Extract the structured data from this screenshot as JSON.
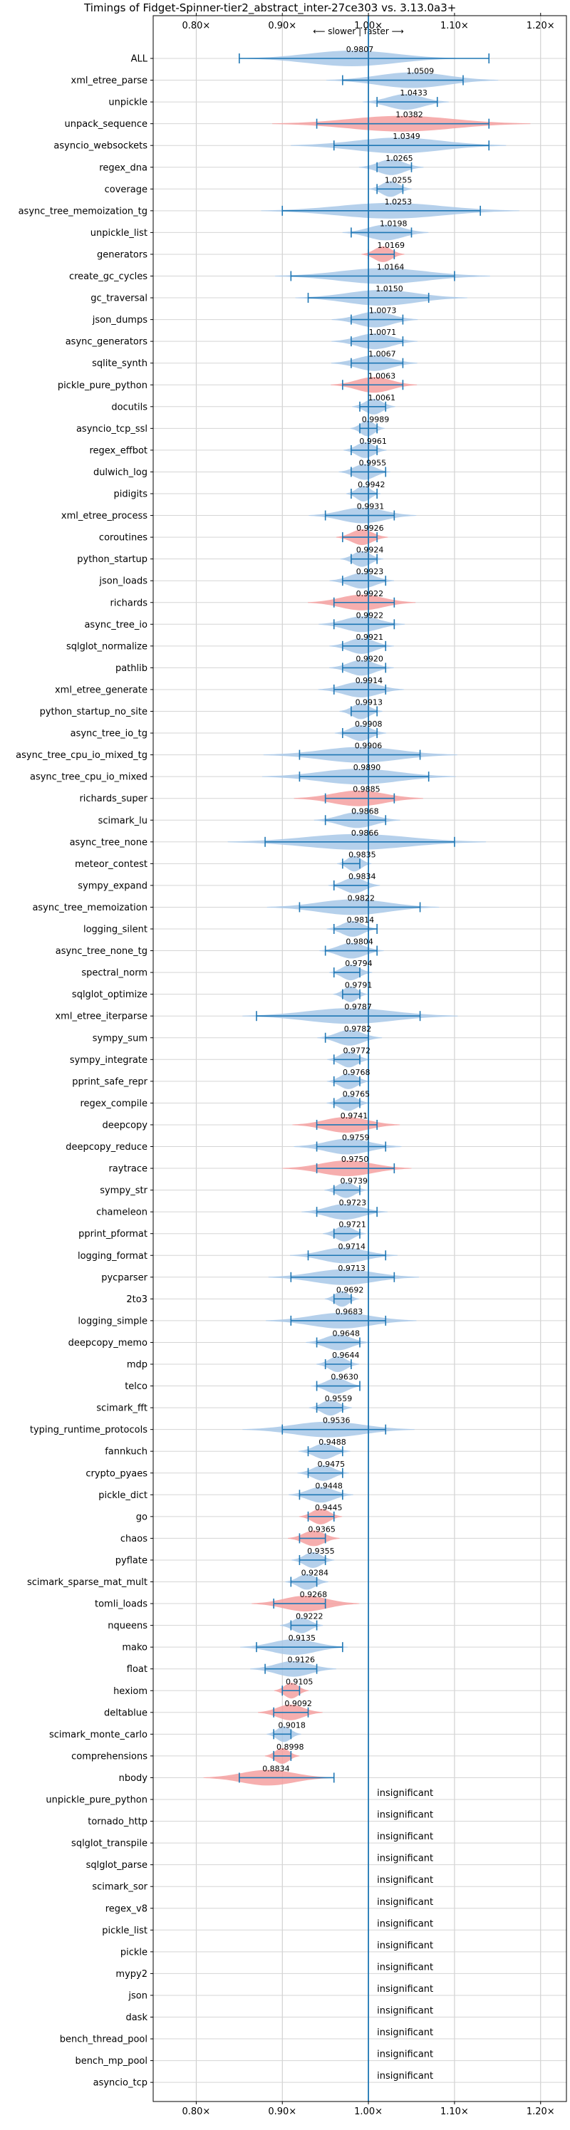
{
  "chart_data": {
    "type": "violin",
    "title": "Timings of Fidget-Spinner-tier2_abstract_inter-27ce303 vs. 3.13.0a3+",
    "direction_label": "⟵ slower | faster ⟶",
    "xlim": [
      0.75,
      1.23
    ],
    "x_ticks": [
      0.8,
      0.9,
      1.0,
      1.1,
      1.2
    ],
    "x_tick_labels": [
      "0.80×",
      "0.90×",
      "1.00×",
      "1.10×",
      "1.20×"
    ],
    "grid": true,
    "colors": {
      "normal": "#a8c8e8",
      "slower": "#f4a0a0",
      "whisker": "#1f77b4"
    },
    "benchmarks": [
      {
        "name": "ALL",
        "value": 0.9807,
        "label": "0.9807",
        "min": 0.85,
        "max": 1.14,
        "spread": 0.05,
        "slower": false
      },
      {
        "name": "xml_etree_parse",
        "value": 1.0509,
        "label": "1.0509",
        "min": 0.97,
        "max": 1.11,
        "spread": 0.04,
        "slower": false
      },
      {
        "name": "unpickle",
        "value": 1.0433,
        "label": "1.0433",
        "min": 1.01,
        "max": 1.08,
        "spread": 0.02,
        "slower": false
      },
      {
        "name": "unpack_sequence",
        "value": 1.0382,
        "label": "1.0382",
        "min": 0.94,
        "max": 1.14,
        "spread": 0.06,
        "slower": true
      },
      {
        "name": "asyncio_websockets",
        "value": 1.0349,
        "label": "1.0349",
        "min": 0.96,
        "max": 1.14,
        "spread": 0.05,
        "slower": false
      },
      {
        "name": "regex_dna",
        "value": 1.0265,
        "label": "1.0265",
        "min": 1.01,
        "max": 1.05,
        "spread": 0.015,
        "slower": false
      },
      {
        "name": "coverage",
        "value": 1.0255,
        "label": "1.0255",
        "min": 1.01,
        "max": 1.04,
        "spread": 0.01,
        "slower": false
      },
      {
        "name": "async_tree_memoization_tg",
        "value": 1.0253,
        "label": "1.0253",
        "min": 0.9,
        "max": 1.13,
        "spread": 0.06,
        "slower": false
      },
      {
        "name": "unpickle_list",
        "value": 1.0198,
        "label": "1.0198",
        "min": 0.98,
        "max": 1.05,
        "spread": 0.02,
        "slower": false
      },
      {
        "name": "generators",
        "value": 1.0169,
        "label": "1.0169",
        "min": 1.0,
        "max": 1.03,
        "spread": 0.01,
        "slower": true
      },
      {
        "name": "create_gc_cycles",
        "value": 1.0164,
        "label": "1.0164",
        "min": 0.91,
        "max": 1.1,
        "spread": 0.05,
        "slower": false
      },
      {
        "name": "gc_traversal",
        "value": 1.015,
        "label": "1.0150",
        "min": 0.93,
        "max": 1.07,
        "spread": 0.04,
        "slower": false
      },
      {
        "name": "json_dumps",
        "value": 1.0073,
        "label": "1.0073",
        "min": 0.98,
        "max": 1.04,
        "spread": 0.02,
        "slower": false
      },
      {
        "name": "async_generators",
        "value": 1.0071,
        "label": "1.0071",
        "min": 0.98,
        "max": 1.04,
        "spread": 0.02,
        "slower": false
      },
      {
        "name": "sqlite_synth",
        "value": 1.0067,
        "label": "1.0067",
        "min": 0.98,
        "max": 1.04,
        "spread": 0.02,
        "slower": false
      },
      {
        "name": "pickle_pure_python",
        "value": 1.0063,
        "label": "1.0063",
        "min": 0.97,
        "max": 1.04,
        "spread": 0.02,
        "slower": true
      },
      {
        "name": "docutils",
        "value": 1.0061,
        "label": "1.0061",
        "min": 0.99,
        "max": 1.02,
        "spread": 0.01,
        "slower": false
      },
      {
        "name": "asyncio_tcp_ssl",
        "value": 0.9989,
        "label": "0.9989",
        "min": 0.99,
        "max": 1.01,
        "spread": 0.008,
        "slower": false
      },
      {
        "name": "regex_effbot",
        "value": 0.9961,
        "label": "0.9961",
        "min": 0.98,
        "max": 1.01,
        "spread": 0.01,
        "slower": false
      },
      {
        "name": "dulwich_log",
        "value": 0.9955,
        "label": "0.9955",
        "min": 0.98,
        "max": 1.02,
        "spread": 0.012,
        "slower": false
      },
      {
        "name": "pidigits",
        "value": 0.9942,
        "label": "0.9942",
        "min": 0.98,
        "max": 1.01,
        "spread": 0.008,
        "slower": false
      },
      {
        "name": "xml_etree_process",
        "value": 0.9931,
        "label": "0.9931",
        "min": 0.95,
        "max": 1.03,
        "spread": 0.025,
        "slower": false
      },
      {
        "name": "coroutines",
        "value": 0.9926,
        "label": "0.9926",
        "min": 0.97,
        "max": 1.01,
        "spread": 0.012,
        "slower": true
      },
      {
        "name": "python_startup",
        "value": 0.9924,
        "label": "0.9924",
        "min": 0.98,
        "max": 1.01,
        "spread": 0.01,
        "slower": false
      },
      {
        "name": "json_loads",
        "value": 0.9923,
        "label": "0.9923",
        "min": 0.97,
        "max": 1.02,
        "spread": 0.015,
        "slower": false
      },
      {
        "name": "richards",
        "value": 0.9922,
        "label": "0.9922",
        "min": 0.96,
        "max": 1.03,
        "spread": 0.025,
        "slower": true
      },
      {
        "name": "async_tree_io",
        "value": 0.9922,
        "label": "0.9922",
        "min": 0.96,
        "max": 1.03,
        "spread": 0.02,
        "slower": false
      },
      {
        "name": "sqlglot_normalize",
        "value": 0.9921,
        "label": "0.9921",
        "min": 0.97,
        "max": 1.02,
        "spread": 0.015,
        "slower": false
      },
      {
        "name": "pathlib",
        "value": 0.992,
        "label": "0.9920",
        "min": 0.97,
        "max": 1.02,
        "spread": 0.015,
        "slower": false
      },
      {
        "name": "xml_etree_generate",
        "value": 0.9914,
        "label": "0.9914",
        "min": 0.96,
        "max": 1.02,
        "spread": 0.02,
        "slower": false
      },
      {
        "name": "python_startup_no_site",
        "value": 0.9913,
        "label": "0.9913",
        "min": 0.98,
        "max": 1.01,
        "spread": 0.01,
        "slower": false
      },
      {
        "name": "async_tree_io_tg",
        "value": 0.9908,
        "label": "0.9908",
        "min": 0.97,
        "max": 1.01,
        "spread": 0.012,
        "slower": false
      },
      {
        "name": "async_tree_cpu_io_mixed_tg",
        "value": 0.9906,
        "label": "0.9906",
        "min": 0.92,
        "max": 1.06,
        "spread": 0.045,
        "slower": false
      },
      {
        "name": "async_tree_cpu_io_mixed",
        "value": 0.989,
        "label": "0.9890",
        "min": 0.92,
        "max": 1.07,
        "spread": 0.045,
        "slower": false
      },
      {
        "name": "richards_super",
        "value": 0.9885,
        "label": "0.9885",
        "min": 0.95,
        "max": 1.03,
        "spread": 0.03,
        "slower": true
      },
      {
        "name": "scimark_lu",
        "value": 0.9868,
        "label": "0.9868",
        "min": 0.95,
        "max": 1.02,
        "spread": 0.02,
        "slower": false
      },
      {
        "name": "async_tree_none",
        "value": 0.9866,
        "label": "0.9866",
        "min": 0.88,
        "max": 1.1,
        "spread": 0.06,
        "slower": false
      },
      {
        "name": "meteor_contest",
        "value": 0.9835,
        "label": "0.9835",
        "min": 0.97,
        "max": 0.99,
        "spread": 0.008,
        "slower": false
      },
      {
        "name": "sympy_expand",
        "value": 0.9834,
        "label": "0.9834",
        "min": 0.96,
        "max": 1.0,
        "spread": 0.012,
        "slower": false
      },
      {
        "name": "async_tree_memoization",
        "value": 0.9822,
        "label": "0.9822",
        "min": 0.92,
        "max": 1.06,
        "spread": 0.04,
        "slower": false
      },
      {
        "name": "logging_silent",
        "value": 0.9814,
        "label": "0.9814",
        "min": 0.96,
        "max": 1.01,
        "spread": 0.012,
        "slower": false
      },
      {
        "name": "async_tree_none_tg",
        "value": 0.9804,
        "label": "0.9804",
        "min": 0.95,
        "max": 1.01,
        "spread": 0.015,
        "slower": false
      },
      {
        "name": "spectral_norm",
        "value": 0.9794,
        "label": "0.9794",
        "min": 0.96,
        "max": 0.99,
        "spread": 0.01,
        "slower": false
      },
      {
        "name": "sqlglot_optimize",
        "value": 0.9791,
        "label": "0.9791",
        "min": 0.97,
        "max": 0.99,
        "spread": 0.008,
        "slower": false
      },
      {
        "name": "xml_etree_iterparse",
        "value": 0.9787,
        "label": "0.9787",
        "min": 0.87,
        "max": 1.06,
        "spread": 0.05,
        "slower": false
      },
      {
        "name": "sympy_sum",
        "value": 0.9782,
        "label": "0.9782",
        "min": 0.95,
        "max": 1.0,
        "spread": 0.015,
        "slower": false
      },
      {
        "name": "sympy_integrate",
        "value": 0.9772,
        "label": "0.9772",
        "min": 0.96,
        "max": 0.99,
        "spread": 0.01,
        "slower": false
      },
      {
        "name": "pprint_safe_repr",
        "value": 0.9768,
        "label": "0.9768",
        "min": 0.96,
        "max": 0.99,
        "spread": 0.01,
        "slower": false
      },
      {
        "name": "regex_compile",
        "value": 0.9765,
        "label": "0.9765",
        "min": 0.96,
        "max": 0.99,
        "spread": 0.01,
        "slower": false
      },
      {
        "name": "deepcopy",
        "value": 0.9741,
        "label": "0.9741",
        "min": 0.94,
        "max": 1.01,
        "spread": 0.025,
        "slower": true
      },
      {
        "name": "deepcopy_reduce",
        "value": 0.9759,
        "label": "0.9759",
        "min": 0.94,
        "max": 1.02,
        "spread": 0.025,
        "slower": false
      },
      {
        "name": "raytrace",
        "value": 0.975,
        "label": "0.9750",
        "min": 0.94,
        "max": 1.03,
        "spread": 0.03,
        "slower": true
      },
      {
        "name": "sympy_str",
        "value": 0.9739,
        "label": "0.9739",
        "min": 0.96,
        "max": 0.99,
        "spread": 0.01,
        "slower": false
      },
      {
        "name": "chameleon",
        "value": 0.9723,
        "label": "0.9723",
        "min": 0.94,
        "max": 1.01,
        "spread": 0.02,
        "slower": false
      },
      {
        "name": "pprint_pformat",
        "value": 0.9721,
        "label": "0.9721",
        "min": 0.96,
        "max": 0.99,
        "spread": 0.01,
        "slower": false
      },
      {
        "name": "logging_format",
        "value": 0.9714,
        "label": "0.9714",
        "min": 0.93,
        "max": 1.02,
        "spread": 0.025,
        "slower": false
      },
      {
        "name": "pycparser",
        "value": 0.9713,
        "label": "0.9713",
        "min": 0.91,
        "max": 1.03,
        "spread": 0.035,
        "slower": false
      },
      {
        "name": "2to3",
        "value": 0.9692,
        "label": "0.9692",
        "min": 0.96,
        "max": 0.98,
        "spread": 0.008,
        "slower": false
      },
      {
        "name": "logging_simple",
        "value": 0.9683,
        "label": "0.9683",
        "min": 0.91,
        "max": 1.02,
        "spread": 0.035,
        "slower": false
      },
      {
        "name": "deepcopy_memo",
        "value": 0.9648,
        "label": "0.9648",
        "min": 0.94,
        "max": 0.99,
        "spread": 0.015,
        "slower": false
      },
      {
        "name": "mdp",
        "value": 0.9644,
        "label": "0.9644",
        "min": 0.95,
        "max": 0.98,
        "spread": 0.01,
        "slower": false
      },
      {
        "name": "telco",
        "value": 0.963,
        "label": "0.9630",
        "min": 0.94,
        "max": 0.99,
        "spread": 0.012,
        "slower": false
      },
      {
        "name": "scimark_fft",
        "value": 0.9559,
        "label": "0.9559",
        "min": 0.94,
        "max": 0.97,
        "spread": 0.01,
        "slower": false
      },
      {
        "name": "typing_runtime_protocols",
        "value": 0.9536,
        "label": "0.9536",
        "min": 0.9,
        "max": 1.02,
        "spread": 0.04,
        "slower": false
      },
      {
        "name": "fannkuch",
        "value": 0.9488,
        "label": "0.9488",
        "min": 0.93,
        "max": 0.97,
        "spread": 0.012,
        "slower": false
      },
      {
        "name": "crypto_pyaes",
        "value": 0.9475,
        "label": "0.9475",
        "min": 0.93,
        "max": 0.97,
        "spread": 0.012,
        "slower": false
      },
      {
        "name": "pickle_dict",
        "value": 0.9448,
        "label": "0.9448",
        "min": 0.92,
        "max": 0.97,
        "spread": 0.015,
        "slower": false
      },
      {
        "name": "go",
        "value": 0.9445,
        "label": "0.9445",
        "min": 0.93,
        "max": 0.96,
        "spread": 0.01,
        "slower": true
      },
      {
        "name": "chaos",
        "value": 0.9365,
        "label": "0.9365",
        "min": 0.92,
        "max": 0.95,
        "spread": 0.012,
        "slower": true
      },
      {
        "name": "pyflate",
        "value": 0.9355,
        "label": "0.9355",
        "min": 0.92,
        "max": 0.95,
        "spread": 0.01,
        "slower": false
      },
      {
        "name": "scimark_sparse_mat_mult",
        "value": 0.9284,
        "label": "0.9284",
        "min": 0.91,
        "max": 0.94,
        "spread": 0.01,
        "slower": false
      },
      {
        "name": "tomli_loads",
        "value": 0.9268,
        "label": "0.9268",
        "min": 0.89,
        "max": 0.95,
        "spread": 0.025,
        "slower": true
      },
      {
        "name": "nqueens",
        "value": 0.9222,
        "label": "0.9222",
        "min": 0.91,
        "max": 0.94,
        "spread": 0.01,
        "slower": false
      },
      {
        "name": "mako",
        "value": 0.9135,
        "label": "0.9135",
        "min": 0.87,
        "max": 0.97,
        "spread": 0.025,
        "slower": false
      },
      {
        "name": "float",
        "value": 0.9126,
        "label": "0.9126",
        "min": 0.88,
        "max": 0.94,
        "spread": 0.02,
        "slower": false
      },
      {
        "name": "hexiom",
        "value": 0.9105,
        "label": "0.9105",
        "min": 0.9,
        "max": 0.92,
        "spread": 0.008,
        "slower": true
      },
      {
        "name": "deltablue",
        "value": 0.9092,
        "label": "0.9092",
        "min": 0.89,
        "max": 0.93,
        "spread": 0.015,
        "slower": true
      },
      {
        "name": "scimark_monte_carlo",
        "value": 0.9018,
        "label": "0.9018",
        "min": 0.89,
        "max": 0.91,
        "spread": 0.008,
        "slower": false
      },
      {
        "name": "comprehensions",
        "value": 0.8998,
        "label": "0.8998",
        "min": 0.89,
        "max": 0.91,
        "spread": 0.008,
        "slower": true
      },
      {
        "name": "nbody",
        "value": 0.8834,
        "label": "0.8834",
        "min": 0.85,
        "max": 0.96,
        "spread": 0.03,
        "slower": true
      },
      {
        "name": "unpickle_pure_python",
        "label": "insignificant"
      },
      {
        "name": "tornado_http",
        "label": "insignificant"
      },
      {
        "name": "sqlglot_transpile",
        "label": "insignificant"
      },
      {
        "name": "sqlglot_parse",
        "label": "insignificant"
      },
      {
        "name": "scimark_sor",
        "label": "insignificant"
      },
      {
        "name": "regex_v8",
        "label": "insignificant"
      },
      {
        "name": "pickle_list",
        "label": "insignificant"
      },
      {
        "name": "pickle",
        "label": "insignificant"
      },
      {
        "name": "mypy2",
        "label": "insignificant"
      },
      {
        "name": "json",
        "label": "insignificant"
      },
      {
        "name": "dask",
        "label": "insignificant"
      },
      {
        "name": "bench_thread_pool",
        "label": "insignificant"
      },
      {
        "name": "bench_mp_pool",
        "label": "insignificant"
      },
      {
        "name": "asyncio_tcp",
        "label": "insignificant"
      }
    ]
  }
}
